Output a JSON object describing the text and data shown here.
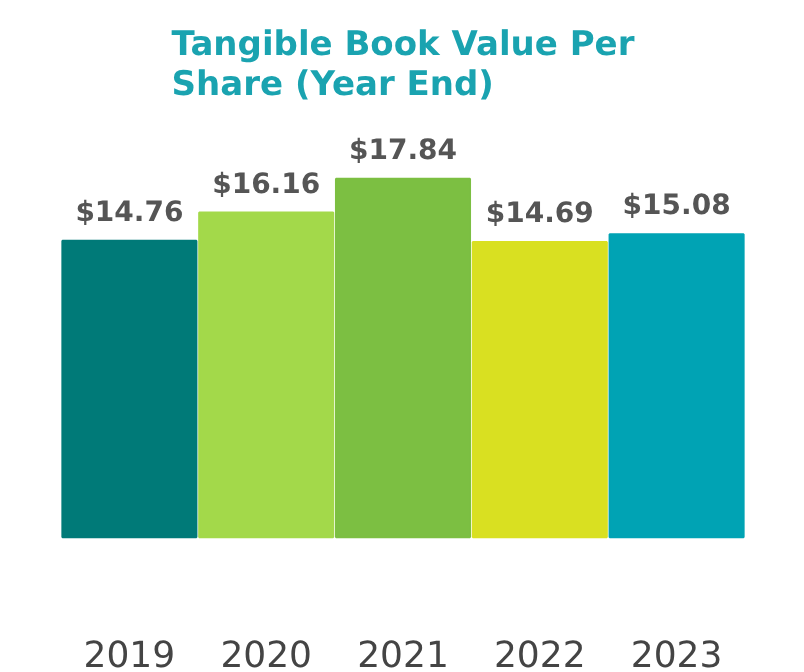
{
  "chart_data": {
    "type": "bar",
    "title": "Tangible Book Value Per\nShare (Year End)",
    "categories": [
      "2019",
      "2020",
      "2021",
      "2022",
      "2023"
    ],
    "values": [
      14.76,
      16.16,
      17.84,
      14.69,
      15.08
    ],
    "value_labels": [
      "$14.76",
      "$16.16",
      "$17.84",
      "$14.69",
      "$15.08"
    ],
    "colors": [
      "#007a78",
      "#a3d94a",
      "#7cbf42",
      "#d9e021",
      "#00a3b4"
    ],
    "tick_labels": "x",
    "grid": false
  }
}
